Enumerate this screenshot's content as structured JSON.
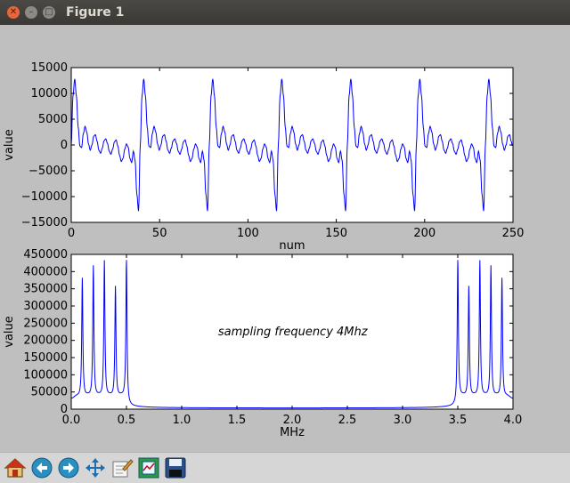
{
  "window": {
    "title": "Figure 1"
  },
  "colors": {
    "line": "#0000ff",
    "figure_bg": "#bfbfbf",
    "axes_bg": "#ffffff"
  },
  "toolbar": {
    "icons": [
      "home-icon",
      "back-icon",
      "forward-icon",
      "pan-icon",
      "configure-subplots-icon",
      "zoom-icon",
      "save-icon"
    ]
  },
  "chart_data": [
    {
      "type": "line",
      "xlabel": "num",
      "ylabel": "value",
      "xlim": [
        0,
        256
      ],
      "ylim": [
        -15000,
        15000
      ],
      "xticks": [
        "0",
        "50",
        "100",
        "150",
        "200",
        "250"
      ],
      "yticks": [
        "15000",
        "10000",
        "5000",
        "0",
        "−5000",
        "−10000",
        "−15000"
      ],
      "period": 40,
      "series": [
        {
          "x": [
            0,
            1,
            2,
            3,
            4,
            5,
            6,
            7,
            8,
            9,
            10,
            11,
            12,
            13,
            14,
            15,
            16,
            17,
            18,
            19,
            20,
            21,
            22,
            23,
            24,
            25,
            26,
            27,
            28,
            29,
            30,
            31,
            32,
            33,
            34,
            35,
            36,
            37,
            38,
            39,
            40
          ],
          "values": [
            0,
            9500,
            12800,
            9500,
            3500,
            -200,
            -500,
            2200,
            3600,
            2500,
            200,
            -1000,
            0,
            1700,
            2000,
            700,
            -1000,
            -1600,
            -600,
            800,
            1200,
            300,
            -1200,
            -1800,
            -800,
            600,
            1000,
            -200,
            -2000,
            -3200,
            -2600,
            -800,
            200,
            -400,
            -2600,
            -3400,
            -1200,
            -3000,
            -9500,
            -12800,
            0
          ]
        }
      ]
    },
    {
      "type": "line",
      "xlabel": "MHz",
      "ylabel": "value",
      "annotation": "sampling frequency 4Mhz",
      "xlim": [
        0,
        4.0
      ],
      "ylim": [
        0,
        450000
      ],
      "xticks": [
        "0.0",
        "0.5",
        "1.0",
        "1.5",
        "2.0",
        "2.5",
        "3.0",
        "3.5",
        "4.0"
      ],
      "yticks": [
        "450000",
        "400000",
        "350000",
        "300000",
        "250000",
        "200000",
        "150000",
        "100000",
        "50000",
        "0"
      ],
      "peaks": [
        {
          "x": 0.1,
          "y": 350000
        },
        {
          "x": 0.2,
          "y": 385000
        },
        {
          "x": 0.3,
          "y": 400000
        },
        {
          "x": 0.4,
          "y": 325000
        },
        {
          "x": 0.5,
          "y": 420000
        },
        {
          "x": 3.5,
          "y": 420000
        },
        {
          "x": 3.6,
          "y": 325000
        },
        {
          "x": 3.7,
          "y": 400000
        },
        {
          "x": 3.8,
          "y": 385000
        },
        {
          "x": 3.9,
          "y": 350000
        }
      ]
    }
  ]
}
